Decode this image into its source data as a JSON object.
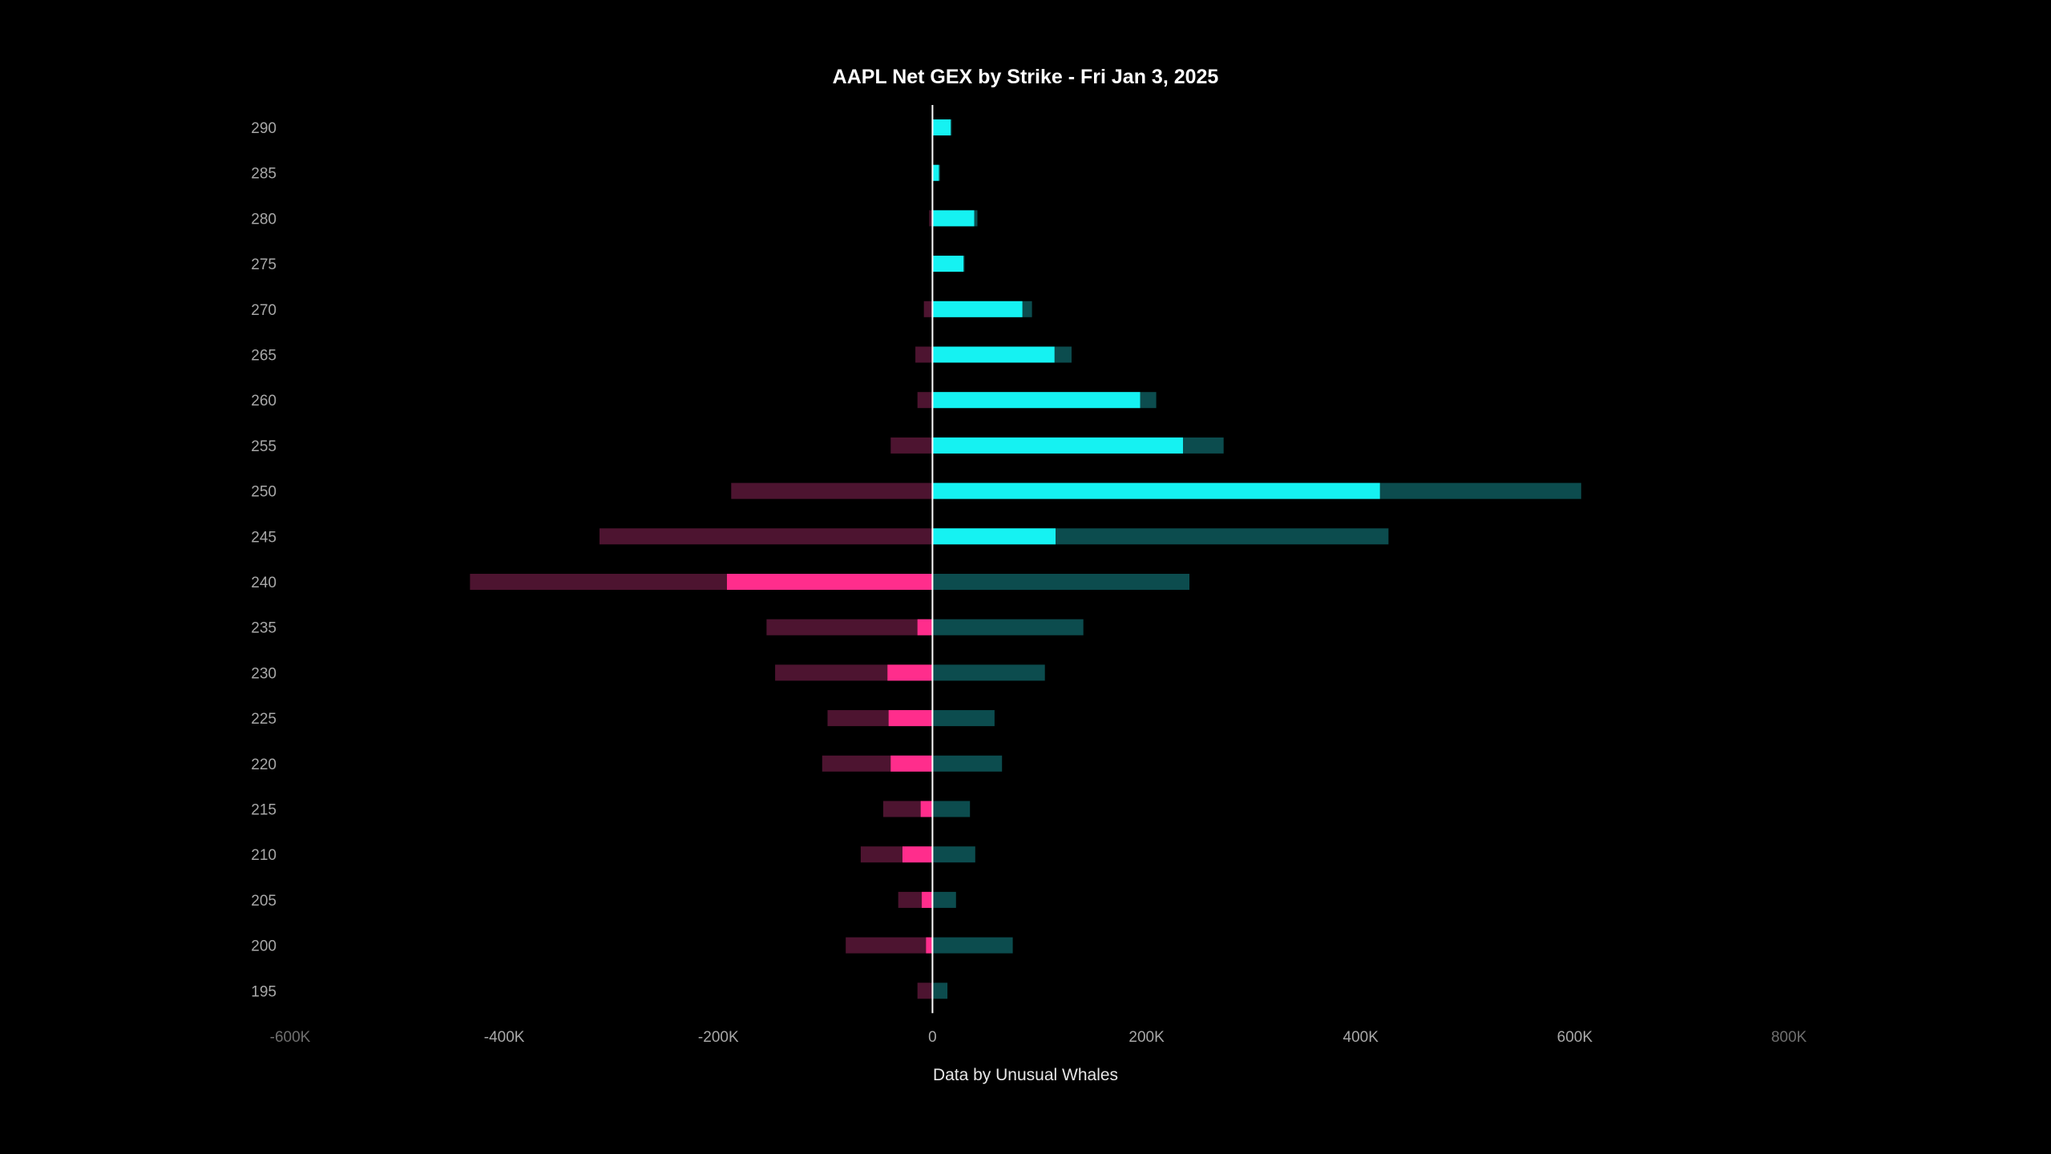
{
  "colors": {
    "background": "#000000",
    "call_total": "#0c4c4e",
    "call_net": "#15f2f2",
    "put_total": "#4d1430",
    "put_net": "#ff2d8c",
    "zero_line": "#ffffff",
    "tick_text": "#a8a8a8",
    "tick_text_faded": "#6f6f6f"
  },
  "chart_data": {
    "type": "bar",
    "orientation": "horizontal",
    "title": "AAPL Net GEX by Strike - Fri Jan 3, 2025",
    "credit": "Data by Unusual Whales",
    "xlim": [
      -600000,
      800000
    ],
    "x_ticks": [
      -600000,
      -400000,
      -200000,
      0,
      200000,
      400000,
      600000,
      800000
    ],
    "x_tick_labels": [
      "-600K",
      "-400K",
      "-200K",
      "0",
      "200K",
      "400K",
      "600K",
      "800K"
    ],
    "faded_tick_labels": [
      "-600K",
      "800K"
    ],
    "categories": [
      "290",
      "285",
      "280",
      "275",
      "270",
      "265",
      "260",
      "255",
      "250",
      "245",
      "240",
      "235",
      "230",
      "225",
      "220",
      "215",
      "210",
      "205",
      "200",
      "195"
    ],
    "series": [
      {
        "key": "call_total",
        "values": [
          18000,
          7000,
          42000,
          30000,
          93000,
          130000,
          209000,
          272000,
          606000,
          426000,
          240000,
          141000,
          105000,
          58000,
          65000,
          35000,
          40000,
          22000,
          75000,
          14000
        ]
      },
      {
        "key": "put_total",
        "values": [
          0,
          0,
          -3000,
          0,
          -8000,
          -16000,
          -14000,
          -39000,
          -188000,
          -311000,
          -432000,
          -155000,
          -147000,
          -98000,
          -103000,
          -46000,
          -67000,
          -32000,
          -81000,
          -14000
        ]
      },
      {
        "key": "call_net",
        "values": [
          17000,
          6000,
          39000,
          29000,
          84000,
          114000,
          194000,
          234000,
          418000,
          115000,
          0,
          0,
          0,
          0,
          0,
          0,
          0,
          0,
          0,
          0
        ]
      },
      {
        "key": "put_net",
        "values": [
          0,
          0,
          0,
          0,
          0,
          0,
          0,
          0,
          0,
          0,
          -192000,
          -14000,
          -42000,
          -41000,
          -39000,
          -11000,
          -28000,
          -10000,
          -6000,
          0
        ]
      }
    ]
  }
}
